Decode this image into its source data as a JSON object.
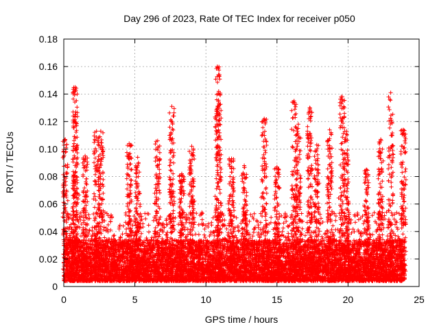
{
  "chart_data": {
    "type": "scatter",
    "title": "Day 296 of 2023, Rate Of TEC Index for receiver p050",
    "xlabel": "GPS time / hours",
    "ylabel": "ROTI / TECUs",
    "xlim": [
      0,
      25
    ],
    "ylim": [
      0,
      0.18
    ],
    "xticks": [
      0,
      5,
      10,
      15,
      20,
      25
    ],
    "yticks": [
      0,
      0.02,
      0.04,
      0.06,
      0.08,
      0.1,
      0.12,
      0.14,
      0.16,
      0.18
    ],
    "grid": true,
    "marker": "plus",
    "series_color": "#ff0000",
    "data_note": "dense cloud of several thousand points, 0-24 h; baseline mostly 0.005-0.035 TECUs with spikes",
    "spikes": [
      {
        "x": 0.1,
        "y": 0.107
      },
      {
        "x": 0.8,
        "y": 0.145
      },
      {
        "x": 0.8,
        "y": 0.125
      },
      {
        "x": 1.5,
        "y": 0.095
      },
      {
        "x": 2.3,
        "y": 0.113
      },
      {
        "x": 2.6,
        "y": 0.113
      },
      {
        "x": 4.6,
        "y": 0.104
      },
      {
        "x": 5.2,
        "y": 0.094
      },
      {
        "x": 6.6,
        "y": 0.106
      },
      {
        "x": 7.6,
        "y": 0.131
      },
      {
        "x": 8.3,
        "y": 0.082
      },
      {
        "x": 9.0,
        "y": 0.102
      },
      {
        "x": 10.8,
        "y": 0.16
      },
      {
        "x": 10.9,
        "y": 0.142
      },
      {
        "x": 11.8,
        "y": 0.093
      },
      {
        "x": 12.7,
        "y": 0.088
      },
      {
        "x": 14.1,
        "y": 0.122
      },
      {
        "x": 15.0,
        "y": 0.087
      },
      {
        "x": 16.2,
        "y": 0.135
      },
      {
        "x": 16.5,
        "y": 0.118
      },
      {
        "x": 17.3,
        "y": 0.13
      },
      {
        "x": 17.8,
        "y": 0.103
      },
      {
        "x": 18.7,
        "y": 0.114
      },
      {
        "x": 19.6,
        "y": 0.138
      },
      {
        "x": 19.9,
        "y": 0.113
      },
      {
        "x": 21.3,
        "y": 0.085
      },
      {
        "x": 22.3,
        "y": 0.107
      },
      {
        "x": 23.0,
        "y": 0.141
      },
      {
        "x": 23.9,
        "y": 0.114
      }
    ]
  }
}
